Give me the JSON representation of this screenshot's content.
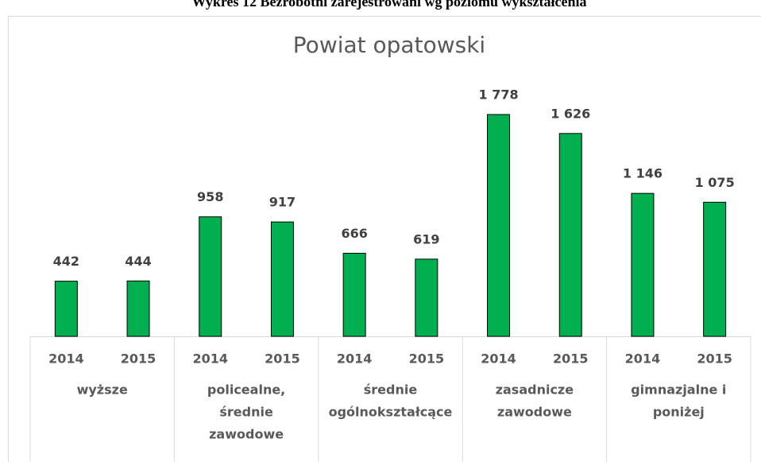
{
  "chart_data": {
    "type": "bar",
    "page_title": "Wykres 12 Bezrobotni zarejestrowani wg poziomu wykształcenia",
    "title": "Powiat opatowski",
    "categories": [
      "2014",
      "2015",
      "2014",
      "2015",
      "2014",
      "2015",
      "2014",
      "2015",
      "2014",
      "2015"
    ],
    "groups": [
      [
        "wyższe"
      ],
      [
        "policealne,",
        "średnie",
        "zawodowe"
      ],
      [
        "średnie",
        "ogólnokształcące"
      ],
      [
        "zasadnicze",
        "zawodowe"
      ],
      [
        "gimnazjalne i",
        "poniżej"
      ]
    ],
    "values": [
      442,
      444,
      958,
      917,
      666,
      619,
      1778,
      1626,
      1146,
      1075
    ],
    "value_labels": [
      "442",
      "444",
      "958",
      "917",
      "666",
      "619",
      "1 778",
      "1 626",
      "1 146",
      "1 075"
    ],
    "color": "#00b050"
  }
}
